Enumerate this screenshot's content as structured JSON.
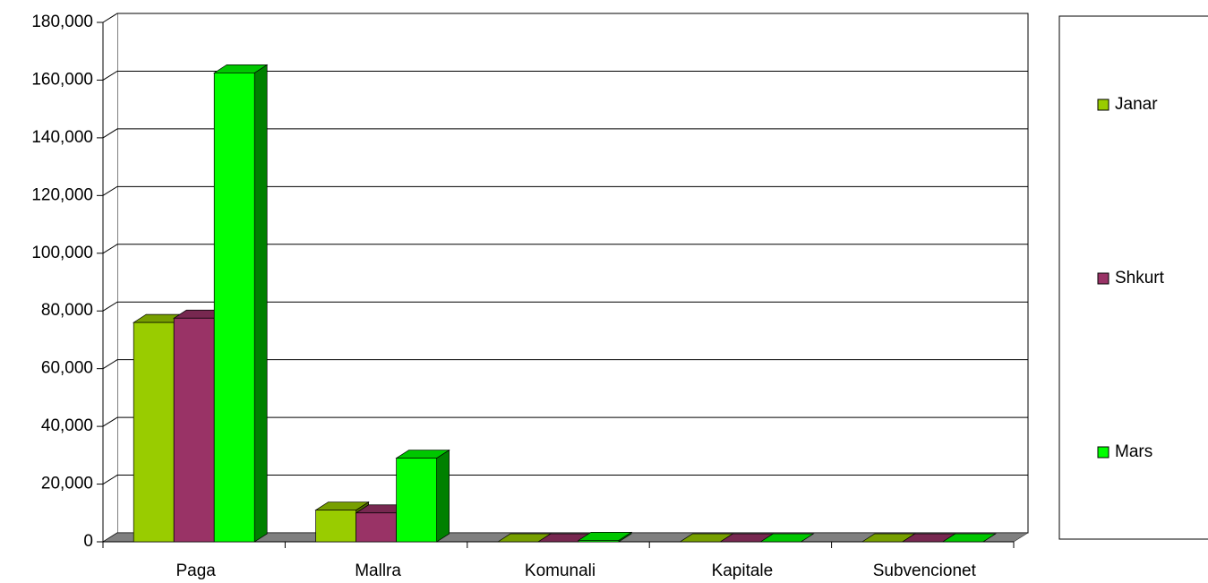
{
  "chart_data": {
    "type": "bar3d",
    "categories": [
      "Paga",
      "Mallra",
      "Komunali",
      "Kapitale",
      "Subvencionet"
    ],
    "series": [
      {
        "name": "Janar",
        "color": "#99cc00",
        "values": [
          76000,
          11000,
          0,
          0,
          0
        ]
      },
      {
        "name": "Shkurt",
        "color": "#993366",
        "values": [
          77500,
          10000,
          0,
          0,
          0
        ]
      },
      {
        "name": "Mars",
        "color": "#00ff00",
        "values": [
          162500,
          29000,
          500,
          0,
          0
        ]
      }
    ],
    "ylim": [
      0,
      180000
    ],
    "yticks": [
      0,
      {
        "value": 20000,
        "label": "20,000"
      },
      {
        "value": 40000,
        "label": "40,000"
      },
      {
        "value": 60000,
        "label": "60,000"
      },
      {
        "value": 80000,
        "label": "80,000"
      },
      {
        "value": 100000,
        "label": "100,000"
      },
      {
        "value": 120000,
        "label": "120,000"
      },
      {
        "value": 140000,
        "label": "140,000"
      },
      {
        "value": 160000,
        "label": "160,000"
      },
      {
        "value": 180000,
        "label": "180,000"
      }
    ],
    "grid": true,
    "legend": "right"
  }
}
